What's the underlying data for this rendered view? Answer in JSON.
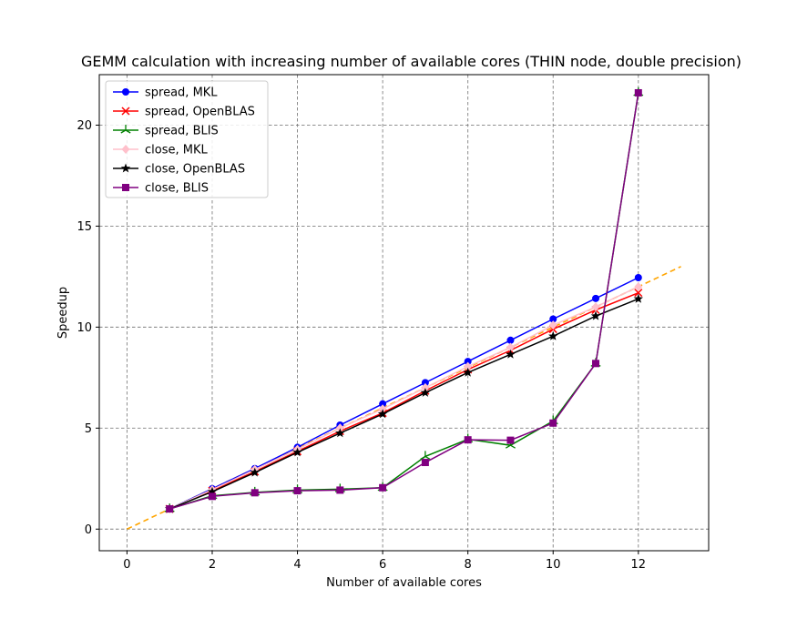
{
  "chart_data": {
    "type": "line",
    "title": "GEMM calculation with increasing number of available cores (THIN node, double precision)",
    "xlabel": "Number of available cores",
    "ylabel": "Speedup",
    "xlim": [
      -0.65,
      13.65
    ],
    "ylim": [
      -1.07,
      22.5
    ],
    "xticks": [
      0,
      2,
      4,
      6,
      8,
      10,
      12
    ],
    "yticks": [
      0,
      5,
      10,
      15,
      20
    ],
    "grid": true,
    "legend_position": "top-left",
    "x": [
      1,
      2,
      3,
      4,
      5,
      6,
      7,
      8,
      9,
      10,
      11,
      12
    ],
    "series": [
      {
        "name": "spread, MKL",
        "color": "#0000ff",
        "marker": "circle",
        "values": [
          1.0,
          2.0,
          3.0,
          4.05,
          5.15,
          6.2,
          7.25,
          8.3,
          9.35,
          10.4,
          11.42,
          12.45
        ]
      },
      {
        "name": "spread, OpenBLAS",
        "color": "#ff0000",
        "marker": "x",
        "values": [
          1.0,
          1.9,
          2.85,
          3.85,
          4.85,
          5.75,
          6.85,
          7.9,
          8.85,
          9.9,
          10.85,
          11.7
        ]
      },
      {
        "name": "spread, BLIS",
        "color": "#008000",
        "marker": "tri",
        "values": [
          1.0,
          1.65,
          1.82,
          1.93,
          1.98,
          2.05,
          3.6,
          4.45,
          4.15,
          5.35,
          8.2,
          21.6
        ]
      },
      {
        "name": "close, MKL",
        "color": "#ffc0cb",
        "marker": "diamond",
        "values": [
          1.0,
          1.95,
          2.95,
          3.95,
          5.0,
          5.95,
          7.0,
          8.05,
          9.0,
          10.1,
          11.0,
          12.0
        ]
      },
      {
        "name": "close, OpenBLAS",
        "color": "#000000",
        "marker": "star",
        "values": [
          1.0,
          1.85,
          2.8,
          3.8,
          4.75,
          5.7,
          6.75,
          7.75,
          8.65,
          9.55,
          10.55,
          11.4
        ]
      },
      {
        "name": "close, BLIS",
        "color": "#800080",
        "marker": "square",
        "values": [
          1.0,
          1.62,
          1.8,
          1.9,
          1.93,
          2.05,
          3.3,
          4.42,
          4.4,
          5.25,
          8.2,
          21.6
        ]
      }
    ],
    "reference_line": {
      "color": "#ffa500",
      "style": "dashed",
      "x": [
        0,
        13
      ],
      "y": [
        0,
        13
      ]
    }
  }
}
